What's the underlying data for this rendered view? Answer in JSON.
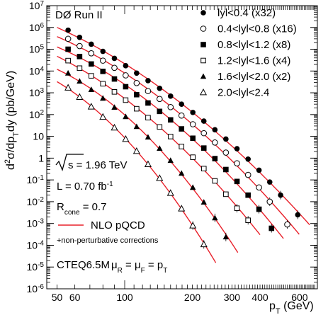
{
  "chart_data": {
    "type": "scatter",
    "experiment_label": "DØ Run II",
    "xlabel": {
      "main": "p",
      "sub": "T",
      "unit": " (GeV)"
    },
    "ylabel": {
      "p1": "d",
      "s1": "2",
      "p2": "σ/dp",
      "s2": "T",
      "p3": "dy (pb/GeV)"
    },
    "x_scale": "log",
    "y_scale": "log",
    "xlim": [
      45,
      720
    ],
    "ylim": [
      1e-06,
      10000000.0
    ],
    "x_ticks": [
      50,
      60,
      100,
      200,
      300,
      400,
      600
    ],
    "x_tick_labels": [
      "50",
      "60",
      "100",
      "200",
      "300",
      "400",
      "600"
    ],
    "y_ticks": [
      {
        "base": "10",
        "exp": "-6",
        "value": 1e-06
      },
      {
        "base": "10",
        "exp": "-5",
        "value": 1e-05
      },
      {
        "base": "10",
        "exp": "-4",
        "value": 0.0001
      },
      {
        "base": "10",
        "exp": "-3",
        "value": 0.001
      },
      {
        "base": "10",
        "exp": "-2",
        "value": 0.01
      },
      {
        "base": "10",
        "exp": "-1",
        "value": 0.1
      },
      {
        "base": "1",
        "exp": "",
        "value": 1
      },
      {
        "base": "10",
        "exp": "",
        "value": 10
      },
      {
        "base": "10",
        "exp": "2",
        "value": 100.0
      },
      {
        "base": "10",
        "exp": "3",
        "value": 1000.0
      },
      {
        "base": "10",
        "exp": "4",
        "value": 10000.0
      },
      {
        "base": "10",
        "exp": "5",
        "value": 100000.0
      },
      {
        "base": "10",
        "exp": "6",
        "value": 1000000.0
      },
      {
        "base": "10",
        "exp": "7",
        "value": 10000000.0
      }
    ],
    "annotations": {
      "sqrt_s": "s = 1.96 TeV",
      "lumi_main": "L = 0.70 fb",
      "lumi_sup": "-1",
      "rcone_main": "R",
      "rcone_sub": "cone",
      "rcone_val": " = 0.7",
      "theory_legend": "NLO pQCD",
      "theory_note": "+non-perturbative corrections",
      "pdf": "CTEQ6.5M",
      "scale_mu1": "μ",
      "scale_sub1": "R",
      "scale_eq1": " = μ",
      "scale_sub2": "F",
      "scale_eq2": " = p",
      "scale_sub3": "T"
    },
    "theory_color": "#e8202a",
    "series": [
      {
        "name": "lyl<0.4 (x32)",
        "marker": "filled-circle",
        "x": [
          56,
          63,
          71,
          80,
          90,
          101,
          113,
          127,
          143,
          160,
          179,
          201,
          225,
          252,
          282,
          316,
          354,
          396,
          442,
          494,
          589
        ],
        "y": [
          750000.0,
          350000.0,
          170000.0,
          80000.0,
          38000.0,
          17500.0,
          8000.0,
          3600.0,
          1600.0,
          700,
          300,
          125,
          50,
          20,
          7.5,
          2.7,
          0.9,
          0.28,
          0.08,
          0.02,
          0.0025
        ]
      },
      {
        "name": "0.4<lyl<0.8 (x16)",
        "marker": "open-circle",
        "x": [
          56,
          63,
          71,
          80,
          90,
          101,
          113,
          127,
          143,
          160,
          179,
          201,
          225,
          252,
          282,
          316,
          354,
          396,
          442,
          529
        ],
        "y": [
          300000.0,
          140000.0,
          65000.0,
          30000.0,
          14000.0,
          6300.0,
          2800.0,
          1200.0,
          520,
          220,
          90,
          36,
          14,
          5.2,
          1.8,
          0.58,
          0.17,
          0.045,
          0.01,
          0.0009
        ]
      },
      {
        "name": "0.8<lyl<1.2 (x8)",
        "marker": "filled-square",
        "x": [
          56,
          63,
          71,
          80,
          90,
          101,
          113,
          127,
          143,
          160,
          179,
          201,
          225,
          252,
          282,
          316,
          354,
          396,
          450
        ],
        "y": [
          100000.0,
          46000.0,
          21000.0,
          9600.0,
          4300.0,
          1900.0,
          820,
          340,
          140,
          57,
          22,
          8.2,
          2.9,
          0.95,
          0.3,
          0.085,
          0.02,
          0.0045,
          0.0006
        ]
      },
      {
        "name": "1.2<lyl<1.6 (x4)",
        "marker": "open-square",
        "x": [
          56,
          63,
          71,
          80,
          90,
          101,
          113,
          127,
          143,
          160,
          179,
          201,
          225,
          252,
          282,
          316,
          354
        ],
        "y": [
          30000.0,
          13500.0,
          6000.0,
          2600.0,
          1100.0,
          460,
          185,
          72,
          27,
          9.8,
          3.4,
          1.1,
          0.33,
          0.09,
          0.022,
          0.005,
          0.0014
        ]
      },
      {
        "name": "1.6<lyl<2.0 (x2)",
        "marker": "filled-triangle",
        "x": [
          56,
          63,
          71,
          80,
          90,
          101,
          113,
          127,
          143,
          160,
          179,
          201,
          225,
          252,
          282
        ],
        "y": [
          8000.0,
          3400.0,
          1400.0,
          560,
          215,
          80,
          28,
          9.2,
          2.8,
          0.78,
          0.2,
          0.045,
          0.0095,
          0.0018,
          0.00024
        ]
      },
      {
        "name": "2.0<lyl<2.4",
        "marker": "open-triangle",
        "x": [
          56,
          63,
          71,
          80,
          90,
          101,
          113,
          127,
          143,
          160,
          179,
          201,
          225
        ],
        "y": [
          1700.0,
          640,
          230,
          78,
          25,
          7.5,
          2.1,
          0.52,
          0.12,
          0.025,
          0.0048,
          0.0008,
          0.00011
        ]
      }
    ]
  }
}
